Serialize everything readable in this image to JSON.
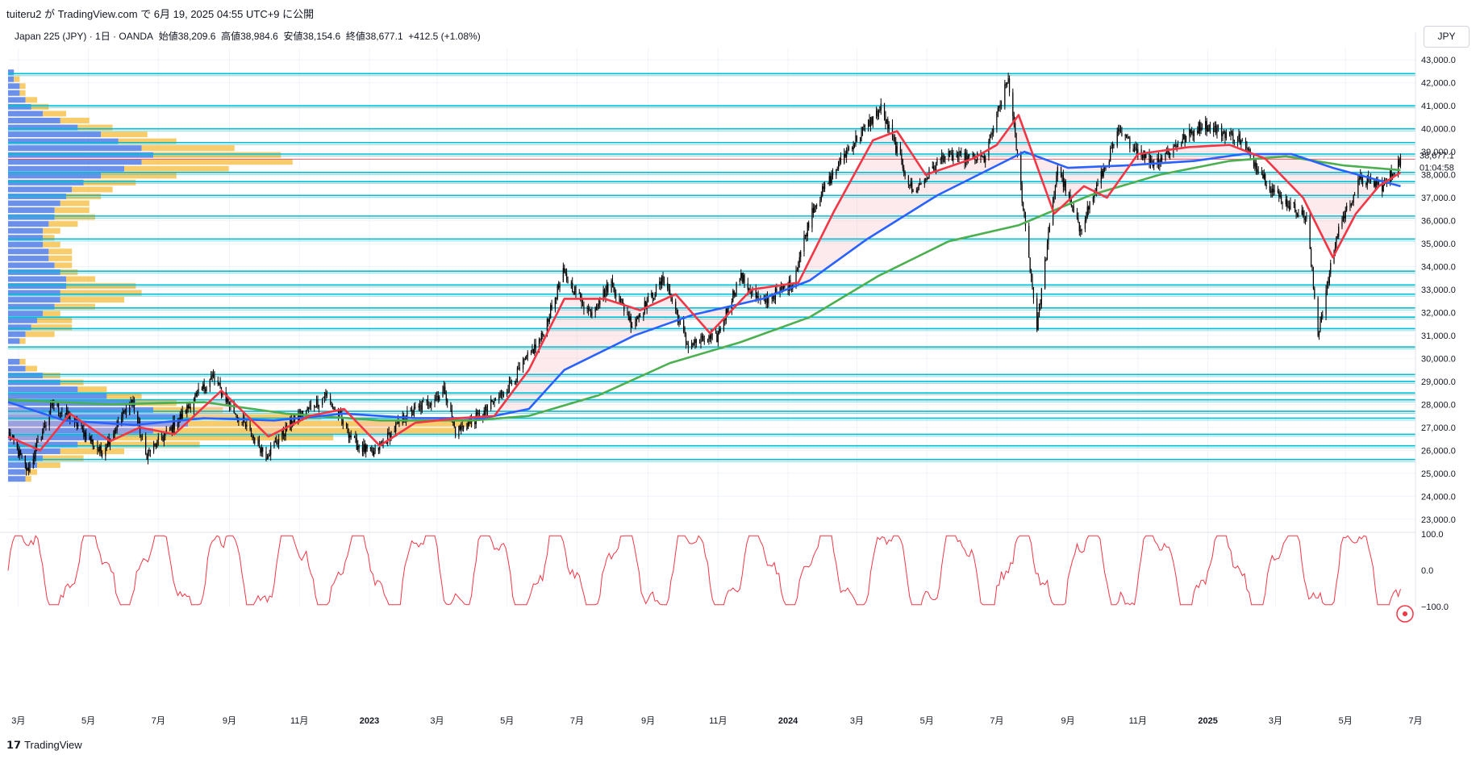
{
  "header": {
    "published_by": "tuiteru2 が TradingView.com で 6月 19, 2025 04:55 UTC+9 に公開"
  },
  "legend": {
    "symbol": "Japan 225 (JPY) · 1日 · OANDA",
    "open": "始値38,209.6",
    "high": "高値38,984.6",
    "low": "安値38,154.6",
    "close": "終値38,677.1",
    "change": "+412.5 (+1.08%)"
  },
  "currency_button": "JPY",
  "footer": {
    "logo": "𝟭𝟳",
    "brand": "TradingView"
  },
  "colors": {
    "ma_fast": "#f23645",
    "ma_mid": "#2962ff",
    "ma_slow": "#4caf50",
    "hline": "#00bcd4",
    "vp_blue": "#5b84e8",
    "vp_yellow": "#f7c65a",
    "oscillator": "#f23645",
    "candles": "#000000"
  },
  "price_axis": {
    "ticks": [
      "43,000.0",
      "42,000.0",
      "41,000.0",
      "40,000.0",
      "39,000.0",
      "38,000.0",
      "37,000.0",
      "36,000.0",
      "35,000.0",
      "34,000.0",
      "33,000.0",
      "32,000.0",
      "31,000.0",
      "30,000.0",
      "29,000.0",
      "28,000.0",
      "27,000.0",
      "26,000.0",
      "25,000.0",
      "24,000.0",
      "23,000.0"
    ],
    "last_price": "38,677.1",
    "countdown": "01:04:58"
  },
  "osc_axis": {
    "ticks": [
      "100.0",
      "0.0",
      "−100.0"
    ]
  },
  "time_axis": [
    {
      "label": "3月",
      "bold": false
    },
    {
      "label": "5月",
      "bold": false
    },
    {
      "label": "7月",
      "bold": false
    },
    {
      "label": "9月",
      "bold": false
    },
    {
      "label": "11月",
      "bold": false
    },
    {
      "label": "2023",
      "bold": true
    },
    {
      "label": "3月",
      "bold": false
    },
    {
      "label": "5月",
      "bold": false
    },
    {
      "label": "7月",
      "bold": false
    },
    {
      "label": "9月",
      "bold": false
    },
    {
      "label": "11月",
      "bold": false
    },
    {
      "label": "2024",
      "bold": true
    },
    {
      "label": "3月",
      "bold": false
    },
    {
      "label": "5月",
      "bold": false
    },
    {
      "label": "7月",
      "bold": false
    },
    {
      "label": "9月",
      "bold": false
    },
    {
      "label": "11月",
      "bold": false
    },
    {
      "label": "2025",
      "bold": true
    },
    {
      "label": "3月",
      "bold": false
    },
    {
      "label": "5月",
      "bold": false
    },
    {
      "label": "7月",
      "bold": false
    }
  ],
  "chart_data": {
    "type": "line",
    "title": "",
    "symbol": "Japan 225 (JPY)",
    "timeframe": "1日",
    "ylim": [
      22500,
      43500
    ],
    "osc_ylim": [
      -100,
      100
    ],
    "x_range": [
      "2022-02-20",
      "2025-07-01"
    ],
    "grid": true,
    "price_path": [
      [
        "2022-02-20",
        26800
      ],
      [
        "2022-03-09",
        25100
      ],
      [
        "2022-03-31",
        28000
      ],
      [
        "2022-04-20",
        27200
      ],
      [
        "2022-05-12",
        25900
      ],
      [
        "2022-06-08",
        28200
      ],
      [
        "2022-06-20",
        25800
      ],
      [
        "2022-07-10",
        26800
      ],
      [
        "2022-08-17",
        29200
      ],
      [
        "2022-09-05",
        27700
      ],
      [
        "2022-10-03",
        25800
      ],
      [
        "2022-10-25",
        27200
      ],
      [
        "2022-11-24",
        28400
      ],
      [
        "2022-12-20",
        26300
      ],
      [
        "2023-01-04",
        25800
      ],
      [
        "2023-01-31",
        27400
      ],
      [
        "2023-03-08",
        28600
      ],
      [
        "2023-03-17",
        26800
      ],
      [
        "2023-04-10",
        27600
      ],
      [
        "2023-05-01",
        28700
      ],
      [
        "2023-05-31",
        30900
      ],
      [
        "2023-06-19",
        33700
      ],
      [
        "2023-07-12",
        32000
      ],
      [
        "2023-07-31",
        33300
      ],
      [
        "2023-08-18",
        31500
      ],
      [
        "2023-09-15",
        33500
      ],
      [
        "2023-10-05",
        30600
      ],
      [
        "2023-10-31",
        30900
      ],
      [
        "2023-11-20",
        33600
      ],
      [
        "2023-12-08",
        32400
      ],
      [
        "2024-01-05",
        33300
      ],
      [
        "2024-01-22",
        36500
      ],
      [
        "2024-02-22",
        39100
      ],
      [
        "2024-03-22",
        40900
      ],
      [
        "2024-04-19",
        37200
      ],
      [
        "2024-05-15",
        38800
      ],
      [
        "2024-06-20",
        38700
      ],
      [
        "2024-07-11",
        42200
      ],
      [
        "2024-08-05",
        31400
      ],
      [
        "2024-08-23",
        38400
      ],
      [
        "2024-09-11",
        35600
      ],
      [
        "2024-10-15",
        39800
      ],
      [
        "2024-11-15",
        38500
      ],
      [
        "2024-12-27",
        40200
      ],
      [
        "2025-01-28",
        39600
      ],
      [
        "2025-02-28",
        37200
      ],
      [
        "2025-03-28",
        36100
      ],
      [
        "2025-04-07",
        31100
      ],
      [
        "2025-04-25",
        35700
      ],
      [
        "2025-05-14",
        37800
      ],
      [
        "2025-06-03",
        37500
      ],
      [
        "2025-06-18",
        38677
      ]
    ],
    "ohlc_last": {
      "open": 38209.6,
      "high": 38984.6,
      "low": 38154.6,
      "close": 38677.1,
      "change": 412.5,
      "change_pct": 1.08
    },
    "ma_fast": [
      [
        "2022-02-20",
        26600
      ],
      [
        "2022-03-20",
        26000
      ],
      [
        "2022-04-15",
        27600
      ],
      [
        "2022-05-20",
        26400
      ],
      [
        "2022-06-15",
        27000
      ],
      [
        "2022-07-15",
        26700
      ],
      [
        "2022-08-25",
        28600
      ],
      [
        "2022-10-05",
        26600
      ],
      [
        "2022-11-10",
        27500
      ],
      [
        "2022-12-10",
        27800
      ],
      [
        "2023-01-10",
        26200
      ],
      [
        "2023-02-10",
        27200
      ],
      [
        "2023-03-20",
        27400
      ],
      [
        "2023-04-20",
        27500
      ],
      [
        "2023-05-20",
        29500
      ],
      [
        "2023-06-20",
        32600
      ],
      [
        "2023-07-25",
        32600
      ],
      [
        "2023-08-25",
        32100
      ],
      [
        "2023-09-25",
        32800
      ],
      [
        "2023-10-25",
        31100
      ],
      [
        "2023-11-30",
        33000
      ],
      [
        "2024-01-10",
        33300
      ],
      [
        "2024-02-10",
        36400
      ],
      [
        "2024-03-15",
        39500
      ],
      [
        "2024-04-05",
        39900
      ],
      [
        "2024-04-30",
        38000
      ],
      [
        "2024-06-10",
        38700
      ],
      [
        "2024-07-01",
        39300
      ],
      [
        "2024-07-20",
        40600
      ],
      [
        "2024-08-20",
        36300
      ],
      [
        "2024-09-15",
        37500
      ],
      [
        "2024-10-05",
        37000
      ],
      [
        "2024-11-01",
        38900
      ],
      [
        "2024-12-15",
        39200
      ],
      [
        "2025-01-20",
        39300
      ],
      [
        "2025-02-20",
        38700
      ],
      [
        "2025-03-25",
        37000
      ],
      [
        "2025-04-20",
        34400
      ],
      [
        "2025-05-10",
        36300
      ],
      [
        "2025-05-30",
        37500
      ],
      [
        "2025-06-18",
        38100
      ]
    ],
    "ma_mid": [
      [
        "2022-02-20",
        28100
      ],
      [
        "2022-04-10",
        27300
      ],
      [
        "2022-06-10",
        27100
      ],
      [
        "2022-08-10",
        27400
      ],
      [
        "2022-10-10",
        27300
      ],
      [
        "2022-12-10",
        27600
      ],
      [
        "2023-02-10",
        27400
      ],
      [
        "2023-04-10",
        27400
      ],
      [
        "2023-05-20",
        27800
      ],
      [
        "2023-06-20",
        29500
      ],
      [
        "2023-08-20",
        31000
      ],
      [
        "2023-10-10",
        31900
      ],
      [
        "2023-12-10",
        32600
      ],
      [
        "2024-01-20",
        33400
      ],
      [
        "2024-03-10",
        35200
      ],
      [
        "2024-05-10",
        37100
      ],
      [
        "2024-07-01",
        38400
      ],
      [
        "2024-07-25",
        39000
      ],
      [
        "2024-09-01",
        38300
      ],
      [
        "2024-10-20",
        38400
      ],
      [
        "2024-12-20",
        38600
      ],
      [
        "2025-02-01",
        38900
      ],
      [
        "2025-03-15",
        38900
      ],
      [
        "2025-04-20",
        38300
      ],
      [
        "2025-06-18",
        37500
      ]
    ],
    "ma_slow": [
      [
        "2022-02-20",
        28200
      ],
      [
        "2022-05-20",
        28000
      ],
      [
        "2022-08-10",
        28100
      ],
      [
        "2022-10-20",
        27600
      ],
      [
        "2023-01-10",
        27300
      ],
      [
        "2023-04-01",
        27300
      ],
      [
        "2023-05-20",
        27500
      ],
      [
        "2023-07-20",
        28400
      ],
      [
        "2023-09-20",
        29800
      ],
      [
        "2023-11-20",
        30700
      ],
      [
        "2024-01-20",
        31800
      ],
      [
        "2024-03-20",
        33600
      ],
      [
        "2024-05-20",
        35100
      ],
      [
        "2024-07-20",
        35800
      ],
      [
        "2024-09-20",
        37100
      ],
      [
        "2024-11-20",
        38000
      ],
      [
        "2025-01-20",
        38600
      ],
      [
        "2025-03-10",
        38800
      ],
      [
        "2025-04-30",
        38400
      ],
      [
        "2025-06-18",
        38200
      ]
    ],
    "horizontal_levels": [
      42400,
      41000,
      40000,
      39400,
      38900,
      38100,
      37700,
      37100,
      36200,
      35200,
      33800,
      33200,
      32800,
      32200,
      31800,
      31300,
      30500,
      29300,
      29000,
      28500,
      28200,
      27700,
      27400,
      26700,
      26200,
      25600
    ],
    "last_price_line": 38677.1,
    "volume_profile": {
      "row_height": 280,
      "price_min": 24500,
      "rows": [
        [
          24600,
          3,
          1
        ],
        [
          24900,
          3,
          2
        ],
        [
          25200,
          5,
          4
        ],
        [
          25500,
          6,
          7
        ],
        [
          25800,
          9,
          11
        ],
        [
          26100,
          12,
          21
        ],
        [
          26400,
          18,
          38
        ],
        [
          26700,
          25,
          52
        ],
        [
          27000,
          31,
          49
        ],
        [
          27300,
          30,
          24
        ],
        [
          27600,
          25,
          12
        ],
        [
          27900,
          22,
          7
        ],
        [
          28200,
          17,
          6
        ],
        [
          28500,
          12,
          5
        ],
        [
          28800,
          9,
          4
        ],
        [
          29100,
          6,
          3
        ],
        [
          29400,
          3,
          2
        ],
        [
          29700,
          2,
          1
        ],
        [
          30600,
          2,
          1
        ],
        [
          30900,
          3,
          5
        ],
        [
          31200,
          4,
          7
        ],
        [
          31500,
          5,
          6
        ],
        [
          31800,
          6,
          3
        ],
        [
          32100,
          8,
          7
        ],
        [
          32400,
          9,
          11
        ],
        [
          32700,
          9,
          14
        ],
        [
          33000,
          10,
          12
        ],
        [
          33300,
          10,
          5
        ],
        [
          33600,
          9,
          3
        ],
        [
          33900,
          8,
          3
        ],
        [
          34200,
          7,
          4
        ],
        [
          34500,
          7,
          4
        ],
        [
          34800,
          6,
          3
        ],
        [
          35100,
          6,
          2
        ],
        [
          35400,
          6,
          3
        ],
        [
          35700,
          7,
          5
        ],
        [
          36000,
          8,
          7
        ],
        [
          36300,
          8,
          6
        ],
        [
          36600,
          9,
          5
        ],
        [
          36900,
          10,
          6
        ],
        [
          37200,
          11,
          7
        ],
        [
          37500,
          13,
          9
        ],
        [
          37800,
          16,
          13
        ],
        [
          38100,
          20,
          18
        ],
        [
          38400,
          23,
          26
        ],
        [
          38700,
          25,
          22
        ],
        [
          39000,
          23,
          16
        ],
        [
          39300,
          19,
          10
        ],
        [
          39600,
          16,
          8
        ],
        [
          39900,
          12,
          6
        ],
        [
          40200,
          9,
          5
        ],
        [
          40500,
          6,
          4
        ],
        [
          40800,
          4,
          3
        ],
        [
          41100,
          3,
          2
        ],
        [
          41400,
          2,
          1
        ],
        [
          41700,
          2,
          1
        ],
        [
          42000,
          1,
          1
        ],
        [
          42300,
          1,
          0
        ]
      ]
    },
    "oscillator": {
      "name": "",
      "period_days": 58,
      "range": [
        -100,
        100
      ]
    }
  }
}
